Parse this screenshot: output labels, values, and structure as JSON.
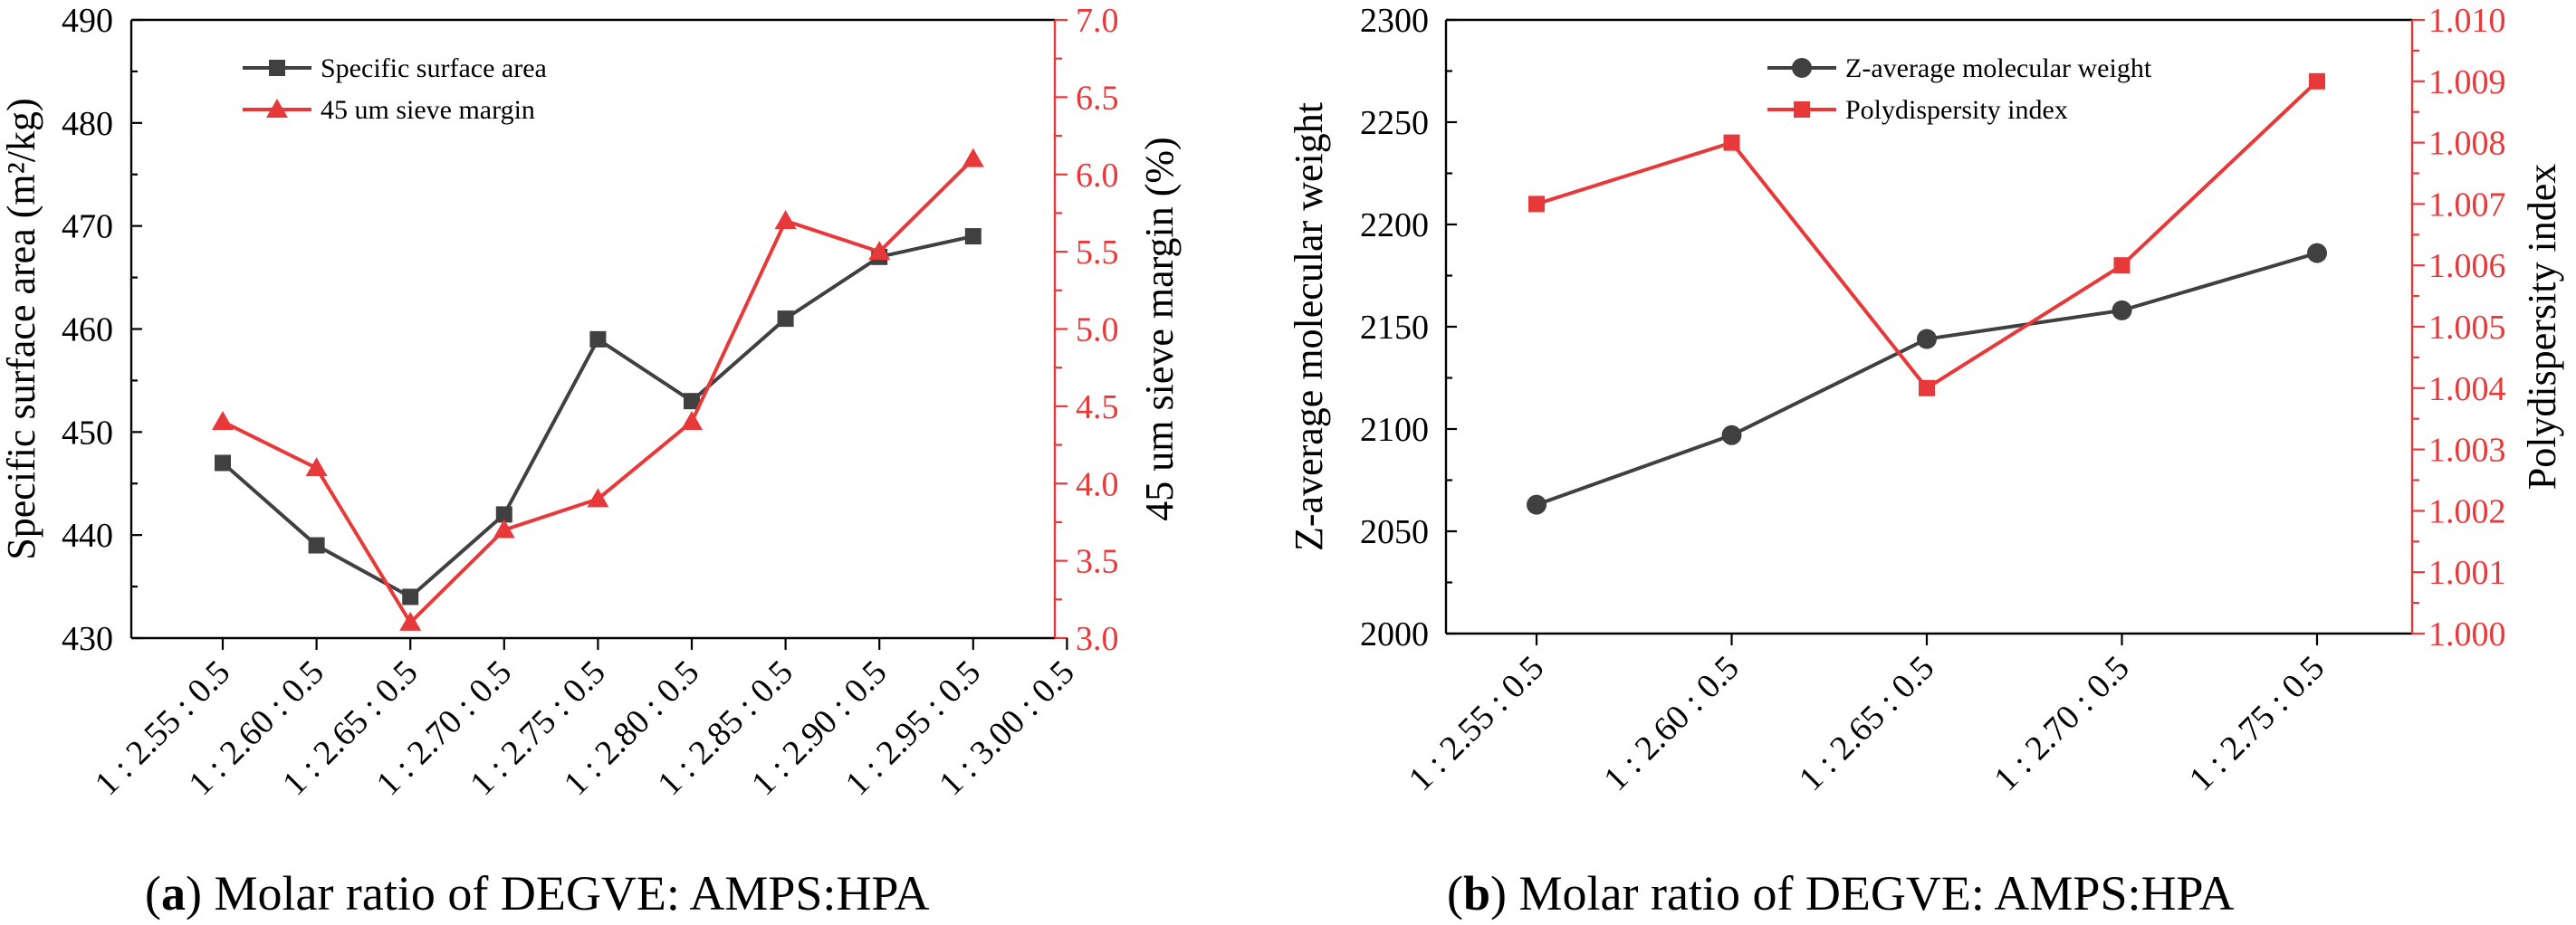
{
  "chart_data": [
    {
      "id": "a",
      "type": "line",
      "caption_letter": "a",
      "caption_text": ") Molar ratio of DEGVE: AMPS:HPA",
      "caption_open": "(",
      "categories": [
        "1 : 2.55 : 0.5",
        "1 : 2.60 : 0.5",
        "1 : 2.65 : 0.5",
        "1 : 2.70 : 0.5",
        "1 : 2.75 : 0.5",
        "1 : 2.80 : 0.5",
        "1 : 2.85 : 0.5",
        "1 : 2.90 : 0.5",
        "1 : 2.95 : 0.5",
        "1 : 3.00 : 0.5"
      ],
      "ylabel": "Specific surface area  (m²/kg)",
      "ylabel_right": "45 um sieve margin  (%)",
      "ylim": [
        430,
        490
      ],
      "ylim_right": [
        3.0,
        7.0
      ],
      "yticks": [
        "430",
        "440",
        "450",
        "460",
        "470",
        "480",
        "490"
      ],
      "yticks_right": [
        "3.0",
        "3.5",
        "4.0",
        "4.5",
        "5.0",
        "5.5",
        "6.0",
        "6.5",
        "7.0"
      ],
      "legend_position": "top-left",
      "series": [
        {
          "name": "Specific surface area",
          "axis": "left",
          "color": "#404040",
          "marker": "square",
          "values": [
            447,
            439,
            434,
            442,
            459,
            453,
            461,
            467,
            469,
            null
          ]
        },
        {
          "name": "45 um sieve margin",
          "axis": "right",
          "color": "#e8393a",
          "marker": "triangle",
          "values": [
            4.4,
            4.1,
            3.1,
            3.7,
            3.9,
            4.4,
            5.7,
            5.5,
            6.1,
            null
          ]
        }
      ]
    },
    {
      "id": "b",
      "type": "line",
      "caption_letter": "b",
      "caption_text": ") Molar ratio of DEGVE: AMPS:HPA",
      "caption_open": "(",
      "categories": [
        "1 : 2.55 : 0.5",
        "1 : 2.60 : 0.5",
        "1 : 2.65 : 0.5",
        "1 : 2.70 : 0.5",
        "1 : 2.75 : 0.5"
      ],
      "ylabel": "Z-average molecular weight",
      "ylabel_right": "Polydispersity index",
      "ylim": [
        2000,
        2300
      ],
      "ylim_right": [
        1.0,
        1.01
      ],
      "yticks": [
        "2000",
        "2050",
        "2100",
        "2150",
        "2200",
        "2250",
        "2300"
      ],
      "yticks_right": [
        "1.000",
        "1.001",
        "1.002",
        "1.003",
        "1.004",
        "1.005",
        "1.006",
        "1.007",
        "1.008",
        "1.009",
        "1.010"
      ],
      "legend_position": "top-right",
      "series": [
        {
          "name": "Z-average molecular weight",
          "axis": "left",
          "color": "#404040",
          "marker": "circle",
          "values": [
            2063,
            2097,
            2144,
            2158,
            2186
          ]
        },
        {
          "name": "Polydispersity index",
          "axis": "right",
          "color": "#e8393a",
          "marker": "square",
          "values": [
            1.007,
            1.008,
            1.004,
            1.006,
            1.009
          ]
        }
      ]
    }
  ]
}
